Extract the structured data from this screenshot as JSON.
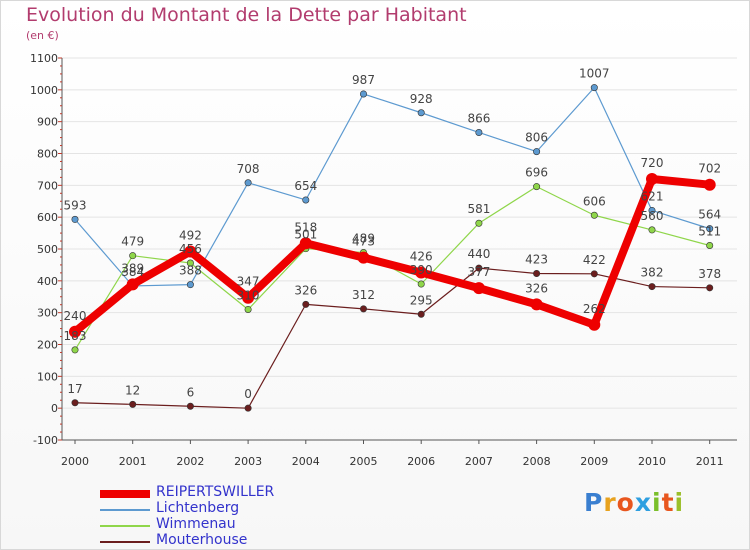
{
  "header": {
    "title": "Evolution du Montant de la Dette par Habitant",
    "subtitle": "(en €)"
  },
  "logo": {
    "text": "Proxiti",
    "letters": [
      {
        "ch": "P",
        "color": "#3a7fd0"
      },
      {
        "ch": "r",
        "color": "#e8a21e"
      },
      {
        "ch": "o",
        "color": "#e8561e"
      },
      {
        "ch": "x",
        "color": "#2e9fe0"
      },
      {
        "ch": "i",
        "color": "#7bbf2a"
      },
      {
        "ch": "t",
        "color": "#e8561e"
      },
      {
        "ch": "i",
        "color": "#9bbf2a"
      }
    ]
  },
  "chart_data": {
    "type": "line",
    "title": "Evolution du Montant de la Dette par Habitant",
    "subtitle": "(en €)",
    "xlabel": "",
    "ylabel": "",
    "x": [
      "2000",
      "2001",
      "2002",
      "2003",
      "2004",
      "2005",
      "2006",
      "2007",
      "2008",
      "2009",
      "2010",
      "2011"
    ],
    "ylim": [
      -100,
      1100
    ],
    "yticks": [
      -100,
      0,
      100,
      200,
      300,
      400,
      500,
      600,
      700,
      800,
      900,
      1000,
      1100
    ],
    "grid": "horizontal",
    "legend": "bottom-left",
    "series": [
      {
        "name": "Lichtenberg",
        "color": "#5d9ad0",
        "values": [
          593,
          384,
          388,
          708,
          654,
          987,
          928,
          866,
          806,
          1007,
          621,
          564
        ]
      },
      {
        "name": "Wimmenau",
        "color": "#8fd64a",
        "values": [
          183,
          479,
          456,
          310,
          501,
          489,
          390,
          581,
          696,
          606,
          560,
          511
        ]
      },
      {
        "name": "Mouterhouse",
        "color": "#6b1e1e",
        "values": [
          17,
          12,
          6,
          0,
          326,
          312,
          295,
          440,
          423,
          422,
          382,
          378
        ]
      },
      {
        "name": "REIPERTSWILLER",
        "color": "#ee0000",
        "values": [
          240,
          389,
          492,
          347,
          518,
          473,
          426,
          377,
          326,
          262,
          720,
          702
        ]
      }
    ]
  }
}
